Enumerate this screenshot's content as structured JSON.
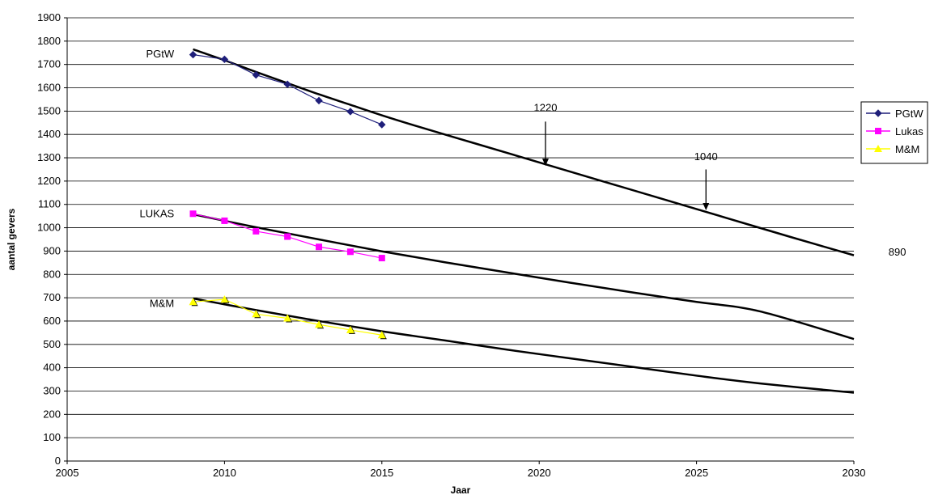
{
  "chart_data": {
    "type": "line",
    "xlabel": "Jaar",
    "ylabel": "aantal gevers",
    "xlim": [
      2005,
      2030
    ],
    "ylim": [
      0,
      1900
    ],
    "x_ticks": [
      2005,
      2010,
      2015,
      2020,
      2025,
      2030
    ],
    "y_ticks": [
      0,
      100,
      200,
      300,
      400,
      500,
      600,
      700,
      800,
      900,
      1000,
      1100,
      1200,
      1300,
      1400,
      1500,
      1600,
      1700,
      1800,
      1900
    ],
    "grid": "horizontal",
    "legend_position": "right",
    "series": [
      {
        "name": "PGtW",
        "marker": "diamond",
        "color": "#1f1f7a",
        "x": [
          2009,
          2010,
          2011,
          2012,
          2013,
          2014,
          2015
        ],
        "values": [
          1742,
          1722,
          1655,
          1615,
          1545,
          1498,
          1442
        ]
      },
      {
        "name": "Lukas",
        "marker": "square",
        "color": "#ff00ff",
        "x": [
          2009,
          2010,
          2011,
          2012,
          2013,
          2014,
          2015
        ],
        "values": [
          1060,
          1030,
          985,
          962,
          918,
          897,
          870
        ]
      },
      {
        "name": "M&M",
        "marker": "triangle",
        "color": "#ffff00",
        "x": [
          2009,
          2010,
          2011,
          2012,
          2013,
          2014,
          2015
        ],
        "values": [
          682,
          693,
          630,
          612,
          585,
          562,
          540
        ]
      }
    ],
    "trendlines": [
      {
        "series": "PGtW",
        "x": [
          2009,
          2010,
          2011,
          2012,
          2013,
          2014,
          2015,
          2016,
          2018,
          2020,
          2022,
          2024,
          2026,
          2028,
          2030
        ],
        "values": [
          1765,
          1718,
          1668,
          1620,
          1572,
          1527,
          1482,
          1440,
          1360,
          1280,
          1200,
          1120,
          1040,
          960,
          882
        ]
      },
      {
        "series": "Lukas",
        "x": [
          2009,
          2011,
          2013,
          2015,
          2017,
          2019,
          2021,
          2023,
          2025,
          2027,
          2030
        ],
        "values": [
          1058,
          1002,
          950,
          899,
          852,
          808,
          764,
          722,
          682,
          642,
          523
        ]
      },
      {
        "series": "M&M",
        "x": [
          2009,
          2011,
          2013,
          2015,
          2017,
          2019,
          2021,
          2023,
          2025,
          2027,
          2030
        ],
        "values": [
          697,
          647,
          600,
          556,
          517,
          477,
          440,
          403,
          366,
          333,
          293
        ]
      }
    ],
    "series_labels": [
      {
        "text": "PGtW",
        "x": 2008.4,
        "y": 1730
      },
      {
        "text": "LUKAS",
        "x": 2008.4,
        "y": 1045
      },
      {
        "text": "M&M",
        "x": 2008.4,
        "y": 660
      }
    ],
    "annotations": [
      {
        "text": "1220",
        "x": 2020.2,
        "y": 1500,
        "arrow_from": 1455,
        "arrow_to": 1265
      },
      {
        "text": "1040",
        "x": 2025.3,
        "y": 1290,
        "arrow_from": 1250,
        "arrow_to": 1075
      },
      {
        "text": "890",
        "x": 2031.1,
        "y": 880
      }
    ]
  }
}
